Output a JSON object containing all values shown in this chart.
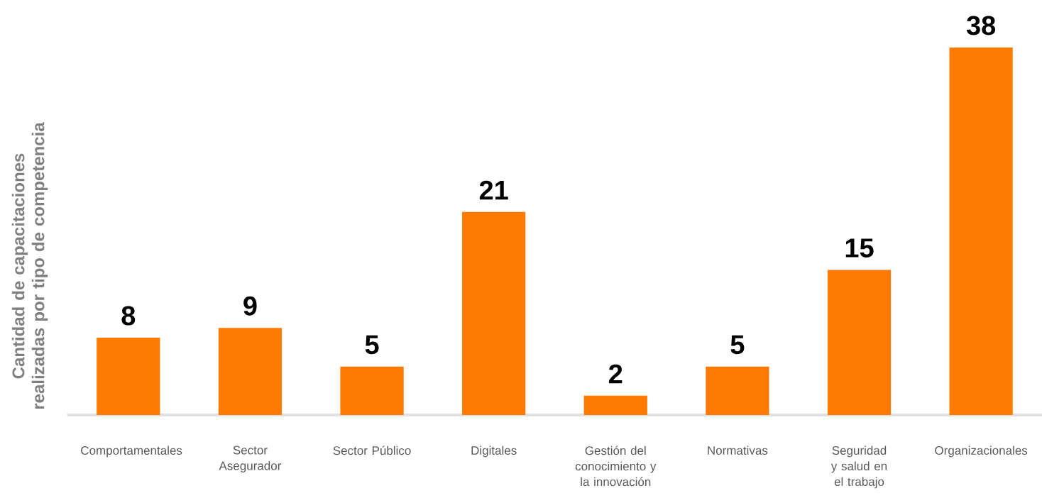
{
  "chart_data": {
    "type": "bar",
    "ylabel": "Cantidad de capacitaciones realizadas por tipo de competencia",
    "categories": [
      "Comportamentales",
      "Sector Asegurador",
      "Sector Público",
      "Digitales",
      "Gestión del conocimiento y la innovación",
      "Normativas",
      "Seguridad y salud en el trabajo",
      "Organizacionales"
    ],
    "values": [
      8,
      9,
      5,
      21,
      2,
      5,
      15,
      38
    ],
    "color": "#ff7a00",
    "data_labels": true
  }
}
